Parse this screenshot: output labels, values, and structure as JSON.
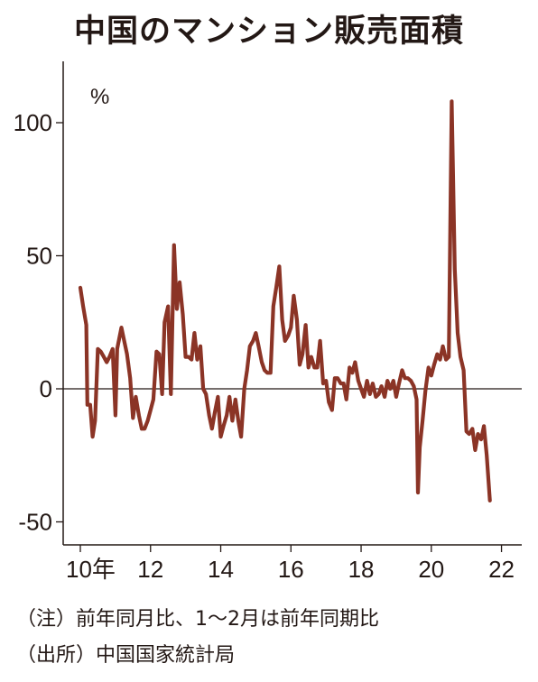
{
  "title": "中国のマンション販売面積",
  "notes": {
    "note": "（注）前年同月比、1～2月は前年同期比",
    "source": "（出所）中国国家統計局"
  },
  "colors": {
    "line": "#8B3426",
    "axis": "#231815",
    "text": "#231815"
  },
  "chart_data": {
    "type": "line",
    "unit_label": "%",
    "yticks": [
      "100",
      "50",
      "0",
      "-50"
    ],
    "xticks": [
      "10年",
      "12",
      "14",
      "16",
      "18",
      "20",
      "22"
    ],
    "xlim": [
      2010,
      2022.5
    ],
    "ylim": [
      -57,
      124
    ],
    "grid": false,
    "series": [
      {
        "values": [
          [
            2010.0,
            38
          ],
          [
            2010.08,
            31
          ],
          [
            2010.17,
            24
          ],
          [
            2010.2,
            -6
          ],
          [
            2010.28,
            -6
          ],
          [
            2010.35,
            -18
          ],
          [
            2010.42,
            -12
          ],
          [
            2010.5,
            15
          ],
          [
            2010.58,
            14
          ],
          [
            2010.67,
            12
          ],
          [
            2010.75,
            10
          ],
          [
            2010.83,
            12
          ],
          [
            2010.92,
            15
          ],
          [
            2011.0,
            -10
          ],
          [
            2011.05,
            15
          ],
          [
            2011.17,
            23
          ],
          [
            2011.25,
            18
          ],
          [
            2011.33,
            13
          ],
          [
            2011.42,
            4
          ],
          [
            2011.5,
            -11
          ],
          [
            2011.58,
            -3
          ],
          [
            2011.67,
            -10
          ],
          [
            2011.75,
            -15
          ],
          [
            2011.83,
            -15
          ],
          [
            2011.92,
            -12
          ],
          [
            2012.0,
            -8
          ],
          [
            2012.08,
            -4
          ],
          [
            2012.17,
            14
          ],
          [
            2012.25,
            13
          ],
          [
            2012.33,
            -2
          ],
          [
            2012.4,
            25
          ],
          [
            2012.5,
            31
          ],
          [
            2012.58,
            -2
          ],
          [
            2012.67,
            54
          ],
          [
            2012.75,
            30
          ],
          [
            2012.83,
            40
          ],
          [
            2012.92,
            28
          ],
          [
            2013.0,
            12
          ],
          [
            2013.08,
            12
          ],
          [
            2013.17,
            11
          ],
          [
            2013.25,
            21
          ],
          [
            2013.33,
            11
          ],
          [
            2013.42,
            16
          ],
          [
            2013.5,
            0
          ],
          [
            2013.58,
            -2
          ],
          [
            2013.67,
            -10
          ],
          [
            2013.75,
            -15
          ],
          [
            2013.83,
            -9
          ],
          [
            2013.92,
            -3
          ],
          [
            2014.0,
            -18
          ],
          [
            2014.08,
            -14
          ],
          [
            2014.17,
            -10
          ],
          [
            2014.25,
            -3
          ],
          [
            2014.33,
            -12
          ],
          [
            2014.42,
            -4
          ],
          [
            2014.5,
            -12
          ],
          [
            2014.58,
            -18
          ],
          [
            2014.67,
            0
          ],
          [
            2014.75,
            7
          ],
          [
            2014.83,
            16
          ],
          [
            2014.92,
            18
          ],
          [
            2015.0,
            21
          ],
          [
            2015.08,
            16
          ],
          [
            2015.17,
            10
          ],
          [
            2015.25,
            7
          ],
          [
            2015.33,
            6
          ],
          [
            2015.42,
            6
          ],
          [
            2015.5,
            31
          ],
          [
            2015.58,
            38
          ],
          [
            2015.67,
            46
          ],
          [
            2015.75,
            26
          ],
          [
            2015.83,
            18
          ],
          [
            2015.92,
            20
          ],
          [
            2016.0,
            23
          ],
          [
            2016.08,
            35
          ],
          [
            2016.17,
            26
          ],
          [
            2016.25,
            9
          ],
          [
            2016.33,
            13
          ],
          [
            2016.42,
            24
          ],
          [
            2016.5,
            8
          ],
          [
            2016.58,
            12
          ],
          [
            2016.67,
            8
          ],
          [
            2016.75,
            8
          ],
          [
            2016.83,
            18
          ],
          [
            2016.92,
            2
          ],
          [
            2017.0,
            3
          ],
          [
            2017.08,
            -5
          ],
          [
            2017.17,
            -8
          ],
          [
            2017.25,
            4
          ],
          [
            2017.33,
            4
          ],
          [
            2017.42,
            2
          ],
          [
            2017.5,
            2
          ],
          [
            2017.58,
            -4
          ],
          [
            2017.67,
            8
          ],
          [
            2017.75,
            6
          ],
          [
            2017.83,
            10
          ],
          [
            2017.92,
            3
          ],
          [
            2018.0,
            0
          ],
          [
            2018.08,
            -3
          ],
          [
            2018.17,
            3
          ],
          [
            2018.25,
            -2
          ],
          [
            2018.33,
            2
          ],
          [
            2018.42,
            -3
          ],
          [
            2018.5,
            -2
          ],
          [
            2018.58,
            1
          ],
          [
            2018.67,
            -3
          ],
          [
            2018.75,
            3
          ],
          [
            2018.83,
            0
          ],
          [
            2018.92,
            3
          ],
          [
            2019.0,
            -3
          ],
          [
            2019.08,
            2
          ],
          [
            2019.17,
            7
          ],
          [
            2019.25,
            4
          ],
          [
            2019.33,
            4
          ],
          [
            2019.42,
            3
          ],
          [
            2019.5,
            1
          ],
          [
            2019.58,
            -4
          ],
          [
            2019.62,
            -39
          ],
          [
            2019.67,
            -22
          ],
          [
            2019.75,
            -12
          ],
          [
            2019.83,
            -1
          ],
          [
            2019.92,
            8
          ],
          [
            2020.0,
            5
          ],
          [
            2020.08,
            9
          ],
          [
            2020.17,
            13
          ],
          [
            2020.25,
            11
          ],
          [
            2020.33,
            16
          ],
          [
            2020.42,
            11
          ],
          [
            2020.5,
            12
          ],
          [
            2020.58,
            108
          ],
          [
            2020.67,
            45
          ],
          [
            2020.75,
            21
          ],
          [
            2020.83,
            12
          ],
          [
            2020.92,
            7
          ],
          [
            2021.0,
            -16
          ],
          [
            2021.08,
            -17
          ],
          [
            2021.17,
            -15
          ],
          [
            2021.25,
            -23
          ],
          [
            2021.33,
            -17
          ],
          [
            2021.42,
            -19
          ],
          [
            2021.5,
            -14
          ],
          [
            2021.58,
            -25
          ],
          [
            2021.67,
            -42
          ]
        ]
      }
    ]
  }
}
